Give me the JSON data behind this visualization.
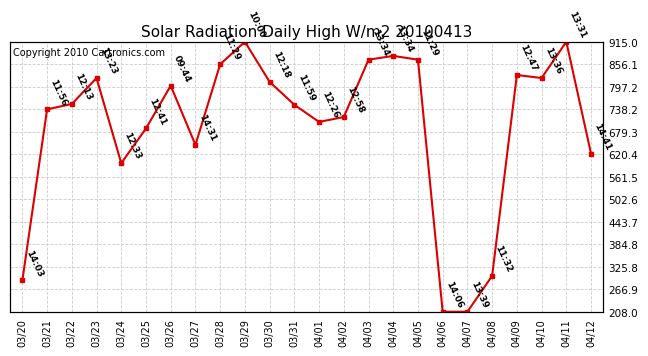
{
  "title": "Solar Radiation Daily High W/m2 20100413",
  "copyright": "Copyright 2010 Cartronics.com",
  "dates": [
    "03/20",
    "03/21",
    "03/22",
    "03/23",
    "03/24",
    "03/25",
    "03/26",
    "03/27",
    "03/28",
    "03/29",
    "03/30",
    "03/31",
    "04/01",
    "04/02",
    "04/03",
    "04/04",
    "04/05",
    "04/06",
    "04/07",
    "04/08",
    "04/09",
    "04/10",
    "04/11",
    "04/12"
  ],
  "values": [
    290,
    738,
    752,
    820,
    597,
    688,
    800,
    645,
    856,
    915,
    810,
    750,
    705,
    718,
    868,
    878,
    868,
    208,
    208,
    302,
    828,
    820,
    915,
    622
  ],
  "labels": [
    "14:03",
    "11:56",
    "12:13",
    "13:23",
    "12:33",
    "12:41",
    "09:44",
    "14:31",
    "11:29",
    "10:00",
    "12:18",
    "11:59",
    "12:26",
    "12:58",
    "13:34",
    "13:34",
    "11:29",
    "14:06",
    "13:39",
    "11:32",
    "12:47",
    "13:36",
    "13:31",
    "14:41"
  ],
  "line_color": "#dd0000",
  "marker_color": "#dd0000",
  "background_color": "#ffffff",
  "grid_color": "#cccccc",
  "ylim": [
    208.0,
    915.0
  ],
  "yticks": [
    208.0,
    266.9,
    325.8,
    384.8,
    443.7,
    502.6,
    561.5,
    620.4,
    679.3,
    738.2,
    797.2,
    856.1,
    915.0
  ],
  "title_fontsize": 11,
  "label_fontsize": 6.5,
  "copyright_fontsize": 7
}
